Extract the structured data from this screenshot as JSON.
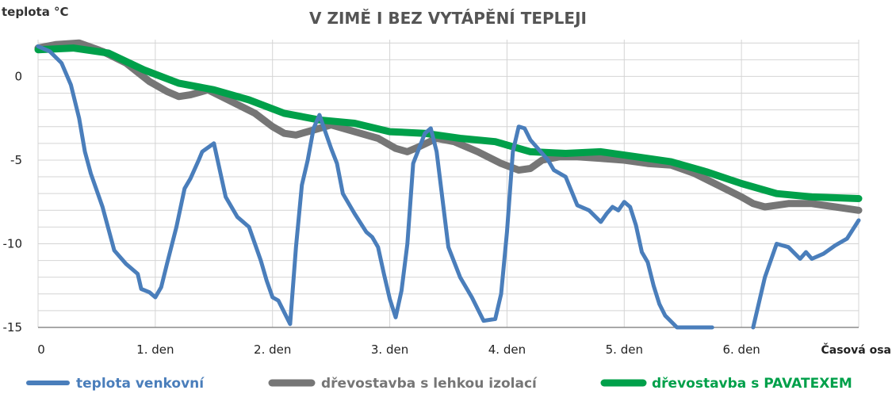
{
  "chart_data": {
    "type": "line",
    "title": "V ZIMĚ I BEZ VYTÁPĚNÍ TEPLEJI",
    "ylabel": "teplota °C",
    "xlabel": "Časová osa",
    "ylim": [
      -15,
      2.2
    ],
    "xlim": [
      0,
      7
    ],
    "x_ticks": [
      0,
      1,
      2,
      3,
      4,
      5,
      6
    ],
    "x_tick_labels": [
      "0",
      "1. den",
      "2. den",
      "3. den",
      "4. den",
      "5. den",
      "6. den"
    ],
    "y_ticks": [
      0,
      -5,
      -10,
      -15
    ],
    "y_tick_labels": [
      "0",
      "-5",
      "-10",
      "-15"
    ],
    "grid": true,
    "legend_position": "bottom",
    "series": [
      {
        "name": "teplota venkovní",
        "color": "#4A7EBB",
        "x": [
          0,
          0.1,
          0.2,
          0.28,
          0.35,
          0.4,
          0.45,
          0.55,
          0.65,
          0.75,
          0.85,
          0.88,
          0.95,
          1.0,
          1.05,
          1.1,
          1.18,
          1.25,
          1.3,
          1.37,
          1.4,
          1.5,
          1.6,
          1.7,
          1.8,
          1.85,
          1.9,
          1.95,
          2.0,
          2.05,
          2.15,
          2.2,
          2.25,
          2.3,
          2.35,
          2.4,
          2.5,
          2.55,
          2.6,
          2.7,
          2.8,
          2.85,
          2.9,
          2.95,
          3.0,
          3.05,
          3.1,
          3.15,
          3.2,
          3.25,
          3.3,
          3.35,
          3.4,
          3.5,
          3.6,
          3.7,
          3.8,
          3.9,
          3.95,
          4.0,
          4.05,
          4.1,
          4.15,
          4.2,
          4.3,
          4.35,
          4.4,
          4.5,
          4.6,
          4.7,
          4.8,
          4.85,
          4.9,
          4.95,
          5.0,
          5.05,
          5.1,
          5.15,
          5.2,
          5.25,
          5.3,
          5.35,
          5.45,
          5.55,
          5.65,
          5.75
        ],
        "y": [
          1.8,
          1.5,
          0.8,
          -0.5,
          -2.5,
          -4.5,
          -5.8,
          -7.8,
          -10.4,
          -11.2,
          -11.8,
          -12.7,
          -12.9,
          -13.2,
          -12.6,
          -11.2,
          -9.0,
          -6.7,
          -6.1,
          -5.0,
          -4.5,
          -4.0,
          -7.2,
          -8.4,
          -9.0,
          -10.0,
          -11.0,
          -12.2,
          -13.2,
          -13.4,
          -14.8,
          -10.2,
          -6.5,
          -5.0,
          -3.1,
          -2.3,
          -4.3,
          -5.2,
          -7.0,
          -8.2,
          -9.3,
          -9.6,
          -10.2,
          -11.8,
          -13.3,
          -14.4,
          -12.8,
          -10.0,
          -5.2,
          -4.3,
          -3.4,
          -3.1,
          -4.5,
          -10.2,
          -12.0,
          -13.2,
          -14.6,
          -14.5,
          -13.0,
          -9.3,
          -4.5,
          -3.0,
          -3.1,
          -3.8,
          -4.6,
          -5.0,
          -5.6,
          -6.0,
          -7.7,
          -8.0,
          -8.7,
          -8.2,
          -7.8,
          -8.0,
          -7.5,
          -7.8,
          -8.9,
          -10.5,
          -11.1,
          -12.5,
          -13.6,
          -14.3,
          -15.0,
          -15.0,
          -15.0,
          -15.0
        ]
      },
      {
        "name": "",
        "color": "#4A7EBB",
        "x": [
          6.1,
          6.2,
          6.3,
          6.4,
          6.5,
          6.55,
          6.6,
          6.7,
          6.8,
          6.9,
          7.0
        ],
        "y": [
          -15.0,
          -12.0,
          -10.0,
          -10.2,
          -10.9,
          -10.5,
          -10.9,
          -10.6,
          -10.1,
          -9.7,
          -8.6
        ]
      },
      {
        "name": "dřevostavba s lehkou izolací",
        "color": "#767676",
        "x": [
          0,
          0.15,
          0.35,
          0.55,
          0.75,
          0.95,
          1.1,
          1.2,
          1.3,
          1.45,
          1.65,
          1.85,
          2.0,
          2.1,
          2.2,
          2.35,
          2.5,
          2.7,
          2.9,
          3.05,
          3.15,
          3.25,
          3.4,
          3.55,
          3.75,
          3.95,
          4.1,
          4.2,
          4.3,
          4.45,
          4.6,
          4.8,
          5.0,
          5.2,
          5.4,
          5.6,
          5.8,
          6.0,
          6.1,
          6.2,
          6.4,
          6.6,
          6.8,
          7.0
        ],
        "y": [
          1.7,
          1.9,
          2.0,
          1.5,
          0.8,
          -0.3,
          -0.9,
          -1.2,
          -1.1,
          -0.8,
          -1.5,
          -2.2,
          -3.0,
          -3.4,
          -3.5,
          -3.2,
          -2.9,
          -3.3,
          -3.7,
          -4.3,
          -4.5,
          -4.2,
          -3.7,
          -3.9,
          -4.5,
          -5.2,
          -5.6,
          -5.5,
          -5.0,
          -4.8,
          -4.8,
          -4.9,
          -5.0,
          -5.2,
          -5.3,
          -5.8,
          -6.5,
          -7.2,
          -7.6,
          -7.8,
          -7.6,
          -7.6,
          -7.8,
          -8.0
        ]
      },
      {
        "name": "dřevostavba s PAVATEXEM",
        "color": "#00A04A",
        "x": [
          0,
          0.3,
          0.6,
          0.9,
          1.2,
          1.5,
          1.8,
          2.1,
          2.4,
          2.7,
          3.0,
          3.3,
          3.6,
          3.9,
          4.2,
          4.5,
          4.8,
          5.1,
          5.4,
          5.7,
          6.0,
          6.3,
          6.6,
          7.0
        ],
        "y": [
          1.6,
          1.7,
          1.4,
          0.4,
          -0.4,
          -0.8,
          -1.4,
          -2.2,
          -2.6,
          -2.8,
          -3.3,
          -3.4,
          -3.7,
          -3.9,
          -4.5,
          -4.6,
          -4.5,
          -4.8,
          -5.1,
          -5.7,
          -6.4,
          -7.0,
          -7.2,
          -7.3
        ]
      }
    ]
  }
}
